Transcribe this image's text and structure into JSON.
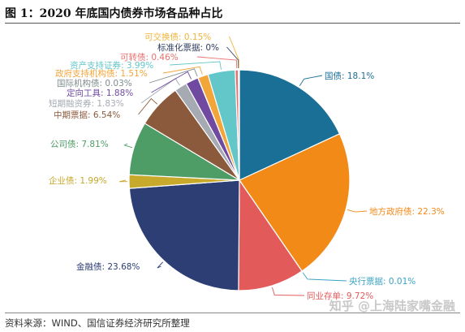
{
  "figure": {
    "title": "图 1：2020 年底国内债券市场各品种占比",
    "source": "资料来源：WIND、国信证券经济研究所整理",
    "watermark": "知乎 @上海陆家嘴金融"
  },
  "chart_data": {
    "type": "pie",
    "title": "",
    "start_angle_deg": 0,
    "direction": "clockwise",
    "slices": [
      {
        "label": "国债: 18.1%",
        "value": 18.1,
        "color": "#1a6f96"
      },
      {
        "label": "地方政府债: 22.3%",
        "value": 22.3,
        "color": "#f28a17"
      },
      {
        "label": "央行票据: 0.01%",
        "value": 0.01,
        "color": "#3aa3c4"
      },
      {
        "label": "同业存单: 9.72%",
        "value": 9.72,
        "color": "#e25a5a"
      },
      {
        "label": "金融债: 23.68%",
        "value": 23.68,
        "color": "#2c3e73"
      },
      {
        "label": "企业债: 1.99%",
        "value": 1.99,
        "color": "#c7a92c"
      },
      {
        "label": "公司债: 7.81%",
        "value": 7.81,
        "color": "#4e9c66"
      },
      {
        "label": "中期票据: 6.54%",
        "value": 6.54,
        "color": "#8b5a3c"
      },
      {
        "label": "短期融资券: 1.83%",
        "value": 1.83,
        "color": "#a6abb3"
      },
      {
        "label": "定向工具: 1.88%",
        "value": 1.88,
        "color": "#6f4aa0"
      },
      {
        "label": "国际机构债: 0.03%",
        "value": 0.03,
        "color": "#7f8c8d"
      },
      {
        "label": "政府支持机构债: 1.51%",
        "value": 1.51,
        "color": "#f2a63a"
      },
      {
        "label": "资产支持证券: 3.99%",
        "value": 3.99,
        "color": "#63c6c9"
      },
      {
        "label": "可转债: 0.46%",
        "value": 0.46,
        "color": "#e8716f"
      },
      {
        "label": "标准化票据: 0%",
        "value": 0,
        "color": "#2f3c5c"
      },
      {
        "label": "可交换债: 0.15%",
        "value": 0.15,
        "color": "#f0b43c"
      }
    ]
  }
}
